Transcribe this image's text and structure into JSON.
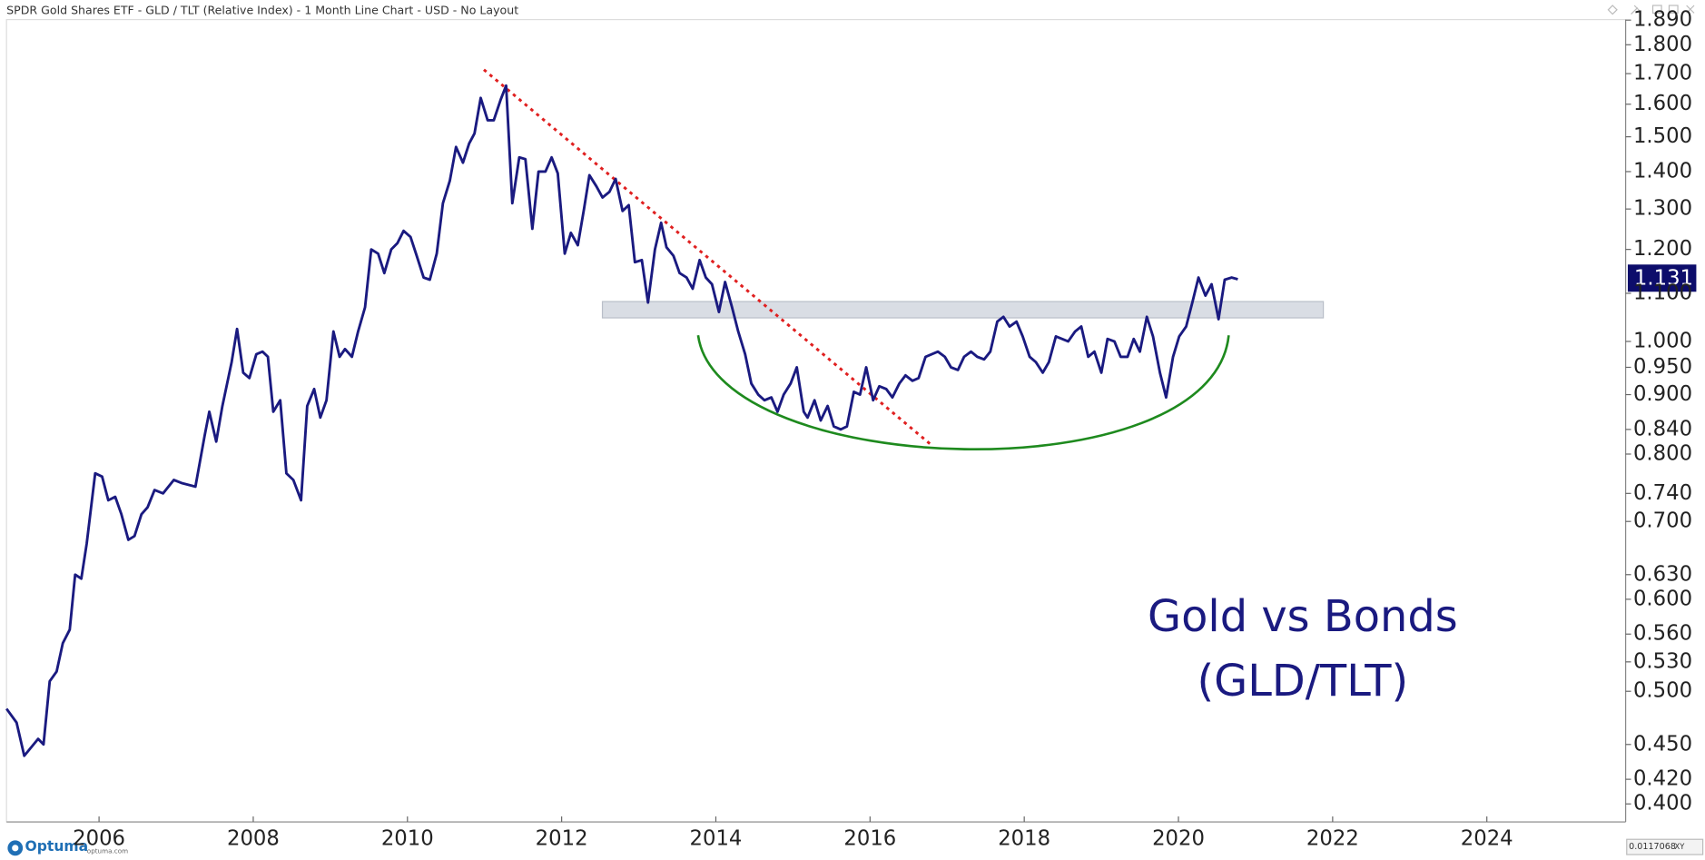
{
  "header": {
    "title": "SPDR Gold Shares ETF - GLD / TLT (Relative Index) - 1 Month Line Chart - USD - No Layout"
  },
  "chart_data": {
    "type": "line",
    "annotations": [
      "Gold vs Bonds",
      "(GLD/TLT)"
    ],
    "last_label": "1.131",
    "ylog": true,
    "xlim": [
      2004.8,
      2025.8
    ],
    "xticks": [
      2006,
      2008,
      2010,
      2012,
      2014,
      2016,
      2018,
      2020,
      2022,
      2024
    ],
    "ylim": [
      0.386,
      1.892
    ],
    "yticks": [
      {
        "value": 0.4,
        "label": "0.400"
      },
      {
        "value": 0.42,
        "label": "0.420"
      },
      {
        "value": 0.45,
        "label": "0.450"
      },
      {
        "value": 0.5,
        "label": "0.500"
      },
      {
        "value": 0.53,
        "label": "0.530"
      },
      {
        "value": 0.56,
        "label": "0.560"
      },
      {
        "value": 0.6,
        "label": "0.600"
      },
      {
        "value": 0.63,
        "label": "0.630"
      },
      {
        "value": 0.7,
        "label": "0.700"
      },
      {
        "value": 0.74,
        "label": "0.740"
      },
      {
        "value": 0.8,
        "label": "0.800"
      },
      {
        "value": 0.84,
        "label": "0.840"
      },
      {
        "value": 0.9,
        "label": "0.900"
      },
      {
        "value": 0.95,
        "label": "0.950"
      },
      {
        "value": 1,
        "label": "1.000"
      },
      {
        "value": 1.1,
        "label": "1.100"
      },
      {
        "value": 1.2,
        "label": "1.200"
      },
      {
        "value": 1.3,
        "label": "1.300"
      },
      {
        "value": 1.4,
        "label": "1.400"
      },
      {
        "value": 1.5,
        "label": "1.500"
      },
      {
        "value": 1.6,
        "label": "1.600"
      },
      {
        "value": 1.7,
        "label": "1.700"
      },
      {
        "value": 1.8,
        "label": "1.800"
      },
      {
        "value": 1.89,
        "label": "1.890"
      }
    ],
    "color": "#1a1a80",
    "x": [
      2004.8,
      2004.93,
      2005.03,
      2005.21,
      2005.28,
      2005.36,
      2005.45,
      2005.53,
      2005.62,
      2005.69,
      2005.77,
      2005.84,
      2005.95,
      2006.04,
      2006.12,
      2006.21,
      2006.29,
      2006.38,
      2006.46,
      2006.55,
      2006.63,
      2006.72,
      2006.83,
      2006.97,
      2007.08,
      2007.25,
      2007.37,
      2007.43,
      2007.52,
      2007.6,
      2007.72,
      2007.79,
      2007.87,
      2007.95,
      2008.04,
      2008.12,
      2008.19,
      2008.26,
      2008.35,
      2008.43,
      2008.52,
      2008.62,
      2008.7,
      2008.79,
      2008.87,
      2008.95,
      2009.04,
      2009.12,
      2009.19,
      2009.28,
      2009.36,
      2009.45,
      2009.53,
      2009.62,
      2009.7,
      2009.79,
      2009.87,
      2009.95,
      2010.04,
      2010.12,
      2010.21,
      2010.29,
      2010.38,
      2010.46,
      2010.55,
      2010.63,
      2010.72,
      2010.8,
      2010.87,
      2010.95,
      2011.04,
      2011.12,
      2011.21,
      2011.28,
      2011.36,
      2011.45,
      2011.53,
      2011.62,
      2011.7,
      2011.79,
      2011.87,
      2011.95,
      2012.04,
      2012.12,
      2012.21,
      2012.29,
      2012.36,
      2012.45,
      2012.53,
      2012.62,
      2012.7,
      2012.79,
      2012.87,
      2012.95,
      2013.04,
      2013.12,
      2013.21,
      2013.29,
      2013.36,
      2013.45,
      2013.53,
      2013.62,
      2013.7,
      2013.79,
      2013.87,
      2013.95,
      2014.04,
      2014.12,
      2014.21,
      2014.29,
      2014.38,
      2014.46,
      2014.55,
      2014.63,
      2014.72,
      2014.8,
      2014.88,
      2014.97,
      2015.05,
      2015.14,
      2015.19,
      2015.28,
      2015.36,
      2015.45,
      2015.53,
      2015.62,
      2015.7,
      2015.79,
      2015.87,
      2015.95,
      2016.04,
      2016.12,
      2016.21,
      2016.29,
      2016.38,
      2016.46,
      2016.55,
      2016.63,
      2016.72,
      2016.8,
      2016.88,
      2016.97,
      2017.05,
      2017.14,
      2017.22,
      2017.31,
      2017.39,
      2017.48,
      2017.56,
      2017.65,
      2017.73,
      2017.81,
      2017.9,
      2017.98,
      2018.07,
      2018.15,
      2018.24,
      2018.32,
      2018.41,
      2018.49,
      2018.57,
      2018.66,
      2018.74,
      2018.83,
      2018.91,
      2019.0,
      2019.08,
      2019.17,
      2019.25,
      2019.34,
      2019.42,
      2019.5,
      2019.59,
      2019.67,
      2019.76,
      2019.84,
      2019.93,
      2020.01,
      2020.1,
      2020.18,
      2020.26,
      2020.35,
      2020.43,
      2020.52,
      2020.6,
      2020.69,
      2020.77
    ],
    "values": [
      0.483,
      0.47,
      0.44,
      0.455,
      0.45,
      0.51,
      0.52,
      0.55,
      0.565,
      0.63,
      0.625,
      0.67,
      0.77,
      0.765,
      0.73,
      0.735,
      0.71,
      0.675,
      0.68,
      0.71,
      0.72,
      0.745,
      0.74,
      0.76,
      0.755,
      0.75,
      0.83,
      0.87,
      0.82,
      0.88,
      0.96,
      1.025,
      0.94,
      0.93,
      0.975,
      0.98,
      0.97,
      0.87,
      0.89,
      0.77,
      0.76,
      0.73,
      0.88,
      0.91,
      0.86,
      0.89,
      1.02,
      0.97,
      0.985,
      0.97,
      1.02,
      1.07,
      1.2,
      1.19,
      1.145,
      1.2,
      1.215,
      1.245,
      1.23,
      1.185,
      1.135,
      1.13,
      1.19,
      1.315,
      1.375,
      1.47,
      1.425,
      1.48,
      1.51,
      1.62,
      1.55,
      1.55,
      1.615,
      1.66,
      1.315,
      1.44,
      1.435,
      1.25,
      1.4,
      1.4,
      1.44,
      1.395,
      1.19,
      1.24,
      1.21,
      1.3,
      1.39,
      1.36,
      1.33,
      1.345,
      1.38,
      1.295,
      1.31,
      1.17,
      1.175,
      1.08,
      1.2,
      1.265,
      1.205,
      1.185,
      1.145,
      1.135,
      1.11,
      1.175,
      1.135,
      1.12,
      1.06,
      1.125,
      1.07,
      1.02,
      0.975,
      0.92,
      0.9,
      0.89,
      0.895,
      0.87,
      0.9,
      0.92,
      0.95,
      0.87,
      0.86,
      0.89,
      0.855,
      0.88,
      0.845,
      0.84,
      0.845,
      0.905,
      0.9,
      0.95,
      0.89,
      0.915,
      0.91,
      0.895,
      0.92,
      0.935,
      0.925,
      0.93,
      0.97,
      0.975,
      0.98,
      0.97,
      0.95,
      0.945,
      0.97,
      0.98,
      0.97,
      0.965,
      0.98,
      1.04,
      1.05,
      1.03,
      1.04,
      1.01,
      0.97,
      0.96,
      0.94,
      0.96,
      1.01,
      1.005,
      1.0,
      1.02,
      1.03,
      0.97,
      0.98,
      0.94,
      1.005,
      1.0,
      0.97,
      0.97,
      1.005,
      0.98,
      1.05,
      1.01,
      0.94,
      0.895,
      0.97,
      1.01,
      1.03,
      1.08,
      1.135,
      1.095,
      1.12,
      1.045,
      1.13,
      1.135,
      1.131
    ]
  },
  "footer": {
    "brand": "Optuma",
    "site": "optuma.com",
    "scale_value": "0.0117068",
    "mode": "XY"
  }
}
